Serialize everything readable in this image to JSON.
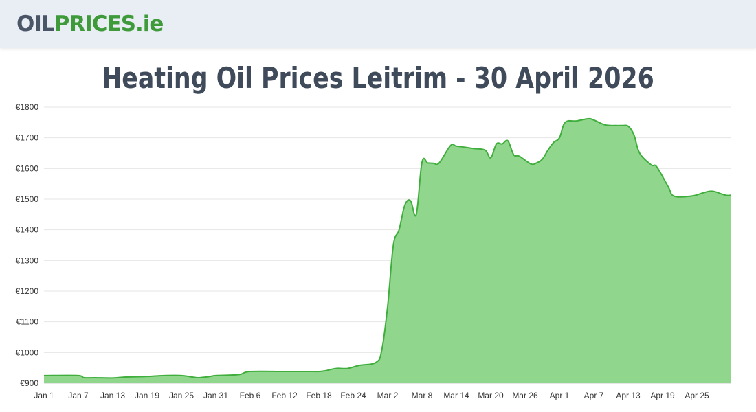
{
  "header": {
    "logo_oil": "OIL",
    "logo_prices": "PRICES",
    "logo_tld": ".ie"
  },
  "colors": {
    "area_fill": "#90d68d",
    "line": "#3fae3c",
    "grid": "#e6e6e6",
    "title": "#3f4a5a"
  },
  "chart_data": {
    "type": "area",
    "title": "Heating Oil Prices Leitrim - 30 April 2026",
    "xlabel": "",
    "ylabel": "",
    "y_ticks": [
      "€900",
      "€1000",
      "€1100",
      "€1200",
      "€1300",
      "€1400",
      "€1500",
      "€1600",
      "€1700",
      "€1800"
    ],
    "y_tick_values": [
      900,
      1000,
      1100,
      1200,
      1300,
      1400,
      1500,
      1600,
      1700,
      1800
    ],
    "ylim": [
      900,
      1800
    ],
    "x_tick_labels": [
      "Jan 1",
      "Jan 7",
      "Jan 13",
      "Jan 19",
      "Jan 25",
      "Jan 31",
      "Feb 6",
      "Feb 12",
      "Feb 18",
      "Feb 24",
      "Mar 2",
      "Mar 8",
      "Mar 14",
      "Mar 20",
      "Mar 26",
      "Apr 1",
      "Apr 7",
      "Apr 13",
      "Apr 19",
      "Apr 25"
    ],
    "x_tick_days": [
      1,
      7,
      13,
      19,
      25,
      31,
      37,
      43,
      49,
      55,
      61,
      67,
      73,
      79,
      85,
      91,
      97,
      103,
      109,
      115
    ],
    "xlim_days": [
      1,
      121
    ],
    "grid": true,
    "legend": "none",
    "series": [
      {
        "x": [
          1,
          7,
          8,
          10,
          13,
          15,
          17,
          19,
          22,
          25,
          27,
          28,
          30,
          31,
          35,
          37,
          43,
          48,
          49,
          50,
          52,
          54,
          56,
          59,
          60,
          61,
          62,
          63,
          64,
          65,
          66,
          67,
          68,
          69,
          70,
          72,
          73,
          75,
          76,
          78,
          79,
          80,
          81,
          82,
          83,
          84,
          86,
          87,
          88,
          89,
          90,
          91,
          92,
          94,
          96,
          97,
          99,
          101,
          102,
          103,
          104,
          105,
          107,
          108,
          110,
          111,
          114,
          116,
          117,
          118,
          120,
          121
        ],
        "y": [
          925,
          925,
          918,
          918,
          917,
          920,
          921,
          922,
          925,
          925,
          920,
          918,
          922,
          925,
          928,
          938,
          938,
          938,
          938,
          940,
          948,
          948,
          958,
          968,
          1010,
          1150,
          1350,
          1400,
          1480,
          1495,
          1450,
          1620,
          1618,
          1617,
          1618,
          1675,
          1673,
          1668,
          1665,
          1660,
          1635,
          1680,
          1680,
          1690,
          1645,
          1640,
          1615,
          1618,
          1630,
          1660,
          1685,
          1700,
          1750,
          1755,
          1762,
          1758,
          1742,
          1740,
          1740,
          1738,
          1710,
          1650,
          1612,
          1605,
          1540,
          1510,
          1510,
          1520,
          1525,
          1525,
          1513,
          1513
        ]
      }
    ]
  }
}
